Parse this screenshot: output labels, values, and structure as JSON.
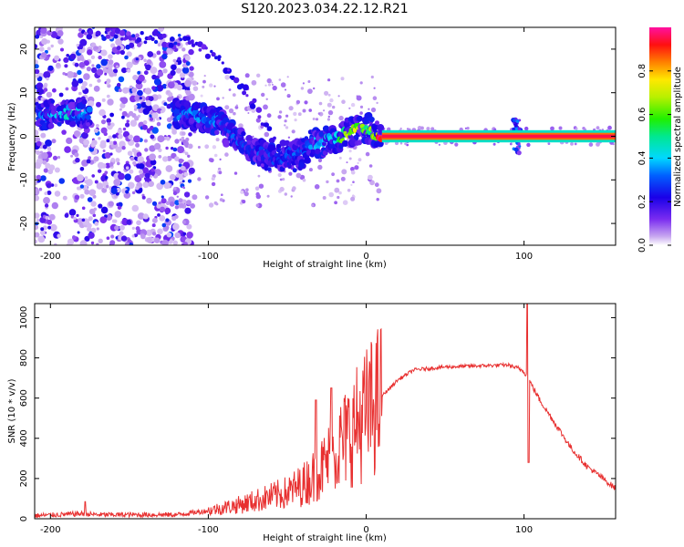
{
  "title": "S120.2023.034.22.12.R21",
  "chart_data": [
    {
      "type": "heatmap",
      "xlabel": "Height of straight line (km)",
      "ylabel": "Frequency (Hz)",
      "xlim": [
        -210,
        158
      ],
      "ylim": [
        -25,
        25
      ],
      "xticks": [
        -200,
        -100,
        0,
        100
      ],
      "yticks": [
        -20,
        -10,
        0,
        10,
        20
      ],
      "colorbar": {
        "label": "Normalized spectral amplitude",
        "range": [
          0,
          1
        ],
        "ticks": [
          "0.0",
          "0.2",
          "0.4",
          "0.6",
          "0.8"
        ],
        "tick_values": [
          0.0,
          0.2,
          0.4,
          0.6,
          0.8
        ]
      },
      "ridge": [
        {
          "x": -208,
          "y": 4.5,
          "a": 0.3
        },
        {
          "x": -200,
          "y": 5,
          "a": 0.35
        },
        {
          "x": -192,
          "y": 5.5,
          "a": 0.4
        },
        {
          "x": -186,
          "y": 5.5,
          "a": 0.42
        },
        {
          "x": -180,
          "y": 5,
          "a": 0.38
        },
        {
          "x": -175,
          "y": 5,
          "a": 0.3
        },
        {
          "x": -122,
          "y": 5,
          "a": 0.3
        },
        {
          "x": -115,
          "y": 5,
          "a": 0.32
        },
        {
          "x": -108,
          "y": 4.5,
          "a": 0.33
        },
        {
          "x": -100,
          "y": 4,
          "a": 0.33
        },
        {
          "x": -93,
          "y": 3.5,
          "a": 0.33
        },
        {
          "x": -88,
          "y": 1,
          "a": 0.3
        },
        {
          "x": -82,
          "y": -1,
          "a": 0.3
        },
        {
          "x": -76,
          "y": -2.5,
          "a": 0.28
        },
        {
          "x": -70,
          "y": -3.5,
          "a": 0.28
        },
        {
          "x": -64,
          "y": -4.5,
          "a": 0.28
        },
        {
          "x": -58,
          "y": -5,
          "a": 0.27
        },
        {
          "x": -52,
          "y": -4.5,
          "a": 0.27
        },
        {
          "x": -46,
          "y": -3.5,
          "a": 0.3
        },
        {
          "x": -40,
          "y": -4,
          "a": 0.3
        },
        {
          "x": -34,
          "y": -1.5,
          "a": 0.35
        },
        {
          "x": -28,
          "y": -1.5,
          "a": 0.4
        },
        {
          "x": -22,
          "y": -0.5,
          "a": 0.45
        },
        {
          "x": -16,
          "y": 0,
          "a": 0.55
        },
        {
          "x": -10,
          "y": 1,
          "a": 0.65
        },
        {
          "x": -4,
          "y": 1.5,
          "a": 0.7
        },
        {
          "x": 0,
          "y": 2,
          "a": 0.55
        },
        {
          "x": 5,
          "y": 1,
          "a": 0.7
        },
        {
          "x": 10,
          "y": 0,
          "a": 0.95
        },
        {
          "x": 158,
          "y": 0,
          "a": 0.95
        }
      ],
      "trace": [
        {
          "x": -175,
          "y": 24
        },
        {
          "x": -150,
          "y": 23
        },
        {
          "x": -125,
          "y": 22
        },
        {
          "x": -110,
          "y": 21
        },
        {
          "x": -95,
          "y": 18
        },
        {
          "x": -82,
          "y": 13
        },
        {
          "x": -70,
          "y": 7
        },
        {
          "x": -60,
          "y": 0
        },
        {
          "x": -52,
          "y": -4
        },
        {
          "x": -45,
          "y": -7
        },
        {
          "x": -40,
          "y": -6
        }
      ]
    },
    {
      "type": "line",
      "xlabel": "Height of straight line (km)",
      "ylabel": "SNR (10 * v/v)",
      "xlim": [
        -210,
        158
      ],
      "ylim": [
        0,
        1070
      ],
      "xticks": [
        -200,
        -100,
        0,
        100
      ],
      "yticks": [
        0,
        200,
        400,
        600,
        800,
        1000
      ],
      "line_color": "#e83030",
      "envelope": [
        {
          "x": -210,
          "y": 15
        },
        {
          "x": -180,
          "y": 25
        },
        {
          "x": -170,
          "y": 20
        },
        {
          "x": -120,
          "y": 20
        },
        {
          "x": -100,
          "y": 40
        },
        {
          "x": -80,
          "y": 70
        },
        {
          "x": -60,
          "y": 110
        },
        {
          "x": -50,
          "y": 130
        },
        {
          "x": -40,
          "y": 170
        },
        {
          "x": -30,
          "y": 230
        },
        {
          "x": -20,
          "y": 330
        },
        {
          "x": -10,
          "y": 430
        },
        {
          "x": 0,
          "y": 520
        },
        {
          "x": 10,
          "y": 610
        },
        {
          "x": 20,
          "y": 690
        },
        {
          "x": 30,
          "y": 740
        },
        {
          "x": 50,
          "y": 755
        },
        {
          "x": 70,
          "y": 760
        },
        {
          "x": 90,
          "y": 765
        },
        {
          "x": 100,
          "y": 735
        },
        {
          "x": 110,
          "y": 590
        },
        {
          "x": 120,
          "y": 470
        },
        {
          "x": 130,
          "y": 350
        },
        {
          "x": 140,
          "y": 260
        },
        {
          "x": 150,
          "y": 200
        },
        {
          "x": 158,
          "y": 150
        }
      ],
      "peaks": [
        {
          "x": -178,
          "y": 85
        },
        {
          "x": -32,
          "y": 590
        },
        {
          "x": -22,
          "y": 650
        },
        {
          "x": 102,
          "y": 1070
        },
        {
          "x": 103,
          "y": 280
        }
      ]
    }
  ]
}
